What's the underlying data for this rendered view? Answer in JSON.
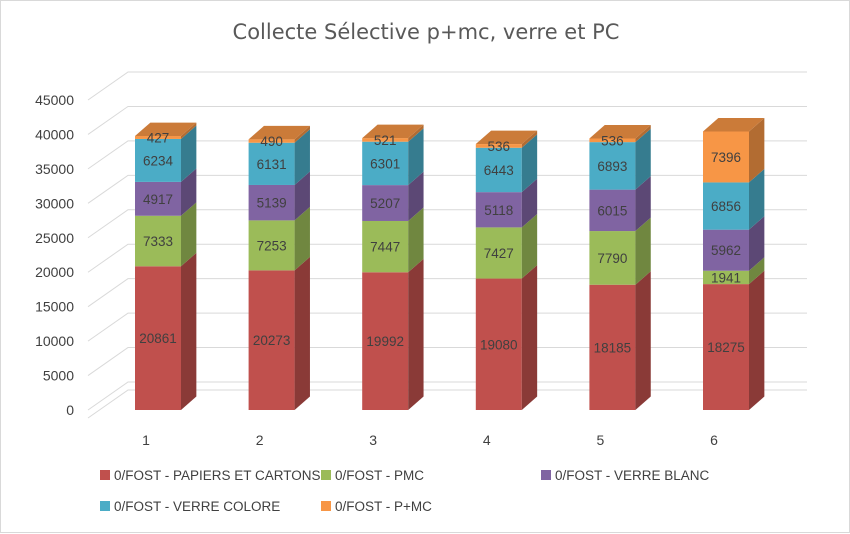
{
  "chart_data": {
    "type": "bar",
    "stacked": true,
    "style": "3d-column",
    "title": "Collecte Sélective p+mc, verre et PC",
    "xlabel": "",
    "ylabel": "",
    "categories": [
      "1",
      "2",
      "3",
      "4",
      "5",
      "6"
    ],
    "ylim": [
      0,
      45000
    ],
    "y_ticks": [
      "0",
      "5000",
      "10000",
      "15000",
      "20000",
      "25000",
      "30000",
      "35000",
      "40000",
      "45000"
    ],
    "grid": true,
    "legend_position": "bottom",
    "series": [
      {
        "name": "0/FOST - PAPIERS ET CARTONS",
        "color": "#C0504D",
        "values": [
          20861,
          20273,
          19992,
          19080,
          18185,
          18275
        ]
      },
      {
        "name": "0/FOST - PMC",
        "color": "#9BBB59",
        "values": [
          7333,
          7253,
          7447,
          7427,
          7790,
          1941
        ]
      },
      {
        "name": "0/FOST - VERRE BLANC",
        "color": "#8064A2",
        "values": [
          4917,
          5139,
          5207,
          5118,
          6015,
          5962
        ]
      },
      {
        "name": "0/FOST - VERRE COLORE",
        "color": "#4BACC6",
        "values": [
          6234,
          6131,
          6301,
          6443,
          6893,
          6856
        ]
      },
      {
        "name": "0/FOST - P+MC",
        "color": "#F79646",
        "values": [
          427,
          490,
          521,
          536,
          536,
          7396
        ]
      }
    ]
  }
}
